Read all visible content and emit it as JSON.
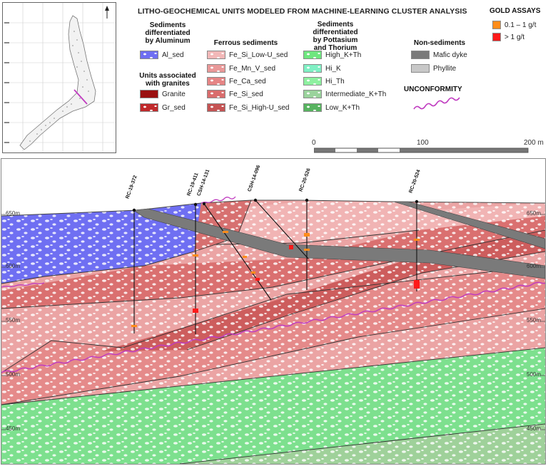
{
  "title": "LITHO-GEOCHEMICAL UNITS MODELED FROM MACHINE-LEARNING CLUSTER ANALYSIS",
  "legend": {
    "aluminum": {
      "heading": [
        "Sediments",
        "differentiated",
        "by Aluminum"
      ],
      "items": [
        {
          "label": "Al_sed",
          "color": "#6f6ff2"
        }
      ]
    },
    "granites": {
      "heading": [
        "Units associated",
        "with granites"
      ],
      "items": [
        {
          "label": "Granite",
          "color": "#9a1111"
        },
        {
          "label": "Gr_sed",
          "color": "#c0292b"
        }
      ]
    },
    "ferrous": {
      "heading": [
        "Ferrous sediments"
      ],
      "items": [
        {
          "label": "Fe_Si_Low-U_sed",
          "color": "#f2b8b8"
        },
        {
          "label": "Fe_Mn_V_sed",
          "color": "#e99898"
        },
        {
          "label": "Fe_Ca_sed",
          "color": "#e58585"
        },
        {
          "label": "Fe_Si_sed",
          "color": "#d96c6c"
        },
        {
          "label": "Fe_Si_High-U_sed",
          "color": "#c55353"
        }
      ]
    },
    "potassium": {
      "heading": [
        "Sediments",
        "differentiated",
        "by Pottasium",
        "and Thorium"
      ],
      "items": [
        {
          "label": "High_K+Th",
          "color": "#6fe67f"
        },
        {
          "label": "Hi_K",
          "color": "#7ff0c4"
        },
        {
          "label": "Hi_Th",
          "color": "#8ef0a0"
        },
        {
          "label": "Intermediate_K+Th",
          "color": "#9ad39c"
        },
        {
          "label": "Low_K+Th",
          "color": "#57b35f"
        }
      ]
    },
    "nonsed": {
      "heading": [
        "Non-sediments"
      ],
      "items": [
        {
          "label": "Mafic dyke",
          "color": "#7a7a7a"
        },
        {
          "label": "Phyllite",
          "color": "#c8c8c8"
        }
      ]
    },
    "unconformity": {
      "label": "UNCONFORMITY",
      "color": "#c03cc0"
    },
    "gold": {
      "heading": "GOLD ASSAYS",
      "items": [
        {
          "label": "0.1 – 1 g/t",
          "color": "#ff8c1a"
        },
        {
          "label": "> 1 g/t",
          "color": "#ff1a1a"
        }
      ]
    }
  },
  "scale_bar": {
    "labels": [
      "0",
      "100",
      "200 m"
    ]
  },
  "section": {
    "elevation_labels": [
      "650m",
      "600m",
      "550m",
      "500m",
      "450m"
    ],
    "drillholes": [
      "RC-19-372",
      "RC-19-411",
      "CSH-14-131",
      "CSH-14-096",
      "RC-20-526",
      "RC-20-524"
    ]
  }
}
